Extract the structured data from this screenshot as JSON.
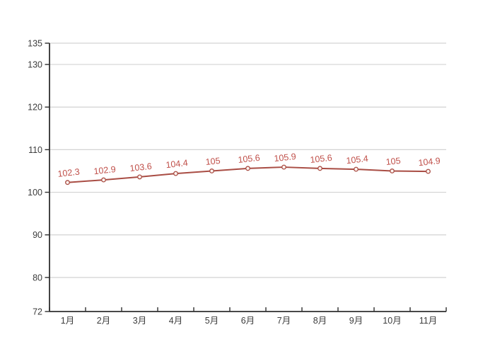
{
  "chart_data": {
    "type": "line",
    "categories": [
      "1月",
      "2月",
      "3月",
      "4月",
      "5月",
      "6月",
      "7月",
      "8月",
      "9月",
      "10月",
      "11月"
    ],
    "values": [
      102.3,
      102.9,
      103.6,
      104.4,
      105,
      105.6,
      105.9,
      105.6,
      105.4,
      105,
      104.9
    ],
    "point_labels": [
      "102.3",
      "102.9",
      "103.6",
      "104.4",
      "105",
      "105.6",
      "105.9",
      "105.6",
      "105.4",
      "105",
      "104.9"
    ],
    "ylim": [
      72,
      135
    ],
    "yticks": [
      72,
      80,
      90,
      100,
      110,
      120,
      130,
      135
    ],
    "ytick_labels": [
      "72",
      "80",
      "90",
      "100",
      "110",
      "120",
      "130",
      "135"
    ],
    "grid": true,
    "legend": "none",
    "colors": {
      "line": "#a94d44",
      "marker_fill": "#fdf4f0",
      "point_label": "#c0504a",
      "axis": "#2f2f2f",
      "gridline": "#d3d3d3",
      "tick_label": "#3d3d3d",
      "background": "#ffffff"
    }
  }
}
